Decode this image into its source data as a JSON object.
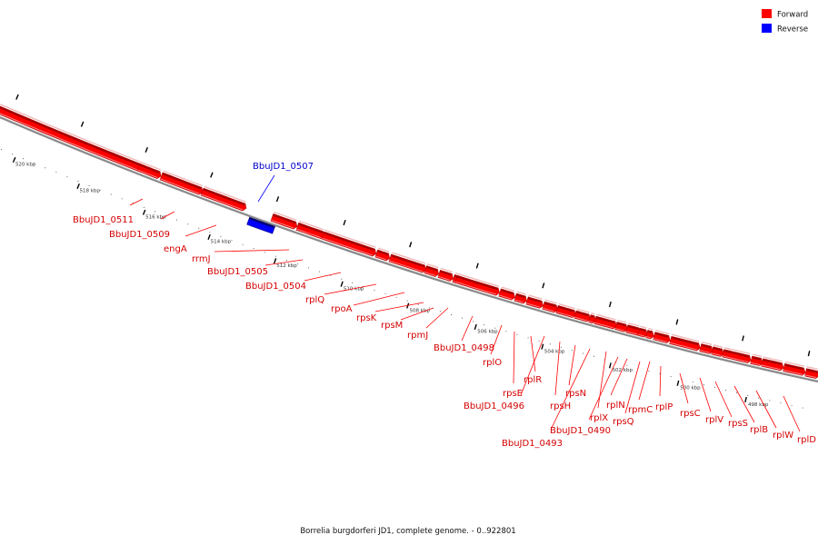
{
  "title": "Borrelia burgdorferi JD1, complete genome. - 0..922801",
  "legend": [
    {
      "label": "Forward",
      "color": "#ff0000"
    },
    {
      "label": "Reverse",
      "color": "#0000ff"
    }
  ],
  "colors": {
    "forward": "#ff0000",
    "reverse": "#0000ff",
    "forward_label": "#d40000",
    "reverse_label": "#0000c8",
    "backbone": "#888888"
  },
  "kbp_ticks": [
    "520 kbp",
    "518 kbp",
    "516 kbp",
    "514 kbp",
    "512 kbp",
    "510 kbp",
    "508 kbp",
    "506 kbp",
    "504 kbp",
    "502 kbp",
    "500 kbp",
    "498 kbp"
  ],
  "genes": [
    {
      "label": "BbuJD1_0511",
      "strand": "forward"
    },
    {
      "label": "BbuJD1_0509",
      "strand": "forward"
    },
    {
      "label": "engA",
      "strand": "forward"
    },
    {
      "label": "BbuJD1_0507",
      "strand": "reverse"
    },
    {
      "label": "rrmJ",
      "strand": "forward"
    },
    {
      "label": "BbuJD1_0505",
      "strand": "forward"
    },
    {
      "label": "BbuJD1_0504",
      "strand": "forward"
    },
    {
      "label": "rplQ",
      "strand": "forward"
    },
    {
      "label": "rpoA",
      "strand": "forward"
    },
    {
      "label": "rpsK",
      "strand": "forward"
    },
    {
      "label": "rpsM",
      "strand": "forward"
    },
    {
      "label": "rpmJ",
      "strand": "forward"
    },
    {
      "label": "BbuJD1_0498",
      "strand": "forward"
    },
    {
      "label": "rplO",
      "strand": "forward"
    },
    {
      "label": "rpsE",
      "strand": "forward"
    },
    {
      "label": "rplR",
      "strand": "forward"
    },
    {
      "label": "BbuJD1_0496",
      "strand": "forward"
    },
    {
      "label": "rpsH",
      "strand": "forward"
    },
    {
      "label": "rpsN",
      "strand": "forward"
    },
    {
      "label": "BbuJD1_0493",
      "strand": "forward"
    },
    {
      "label": "rplX",
      "strand": "forward"
    },
    {
      "label": "BbuJD1_0490",
      "strand": "forward"
    },
    {
      "label": "rplN",
      "strand": "forward"
    },
    {
      "label": "rpsQ",
      "strand": "forward"
    },
    {
      "label": "rpmC",
      "strand": "forward"
    },
    {
      "label": "rplP",
      "strand": "forward"
    },
    {
      "label": "rpsC",
      "strand": "forward"
    },
    {
      "label": "rplV",
      "strand": "forward"
    },
    {
      "label": "rpsS",
      "strand": "forward"
    },
    {
      "label": "rplB",
      "strand": "forward"
    },
    {
      "label": "rplW",
      "strand": "forward"
    },
    {
      "label": "rplD",
      "strand": "forward"
    }
  ]
}
